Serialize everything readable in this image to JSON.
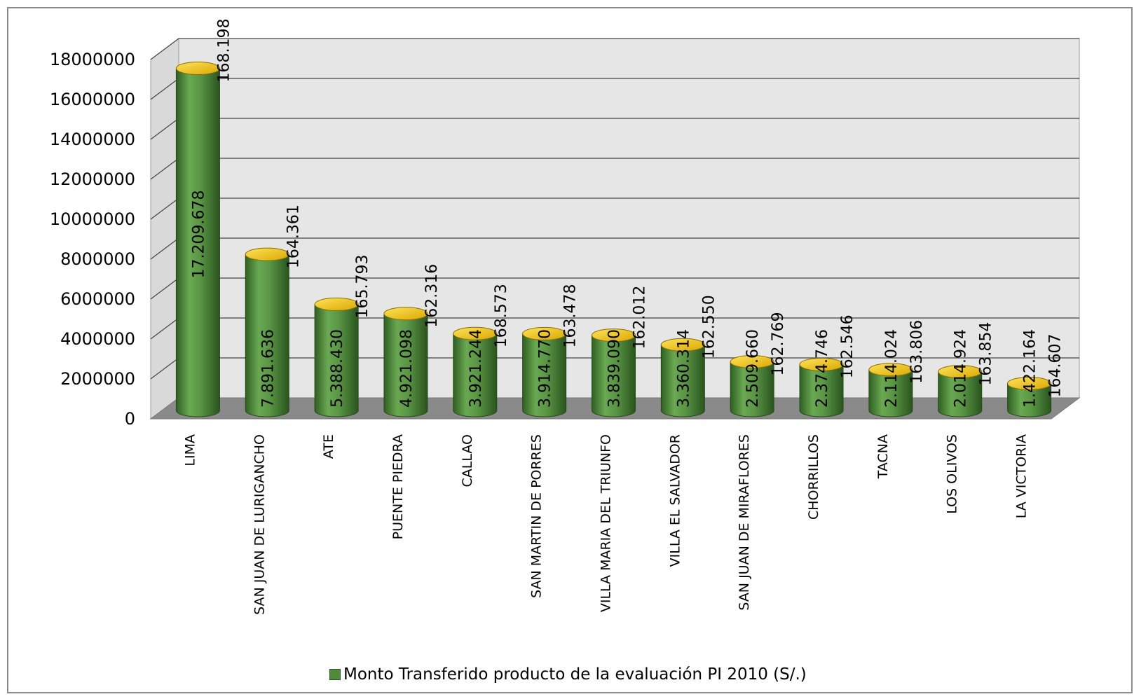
{
  "chart_data": {
    "type": "bar",
    "style": "3d-cylinder",
    "categories": [
      "LIMA",
      "SAN JUAN DE LURIGANCHO",
      "ATE",
      "PUENTE PIEDRA",
      "CALLAO",
      "SAN MARTIN DE PORRES",
      "VILLA MARIA DEL TRIUNFO",
      "VILLA EL SALVADOR",
      "SAN JUAN DE MIRAFLORES",
      "CHORRILLOS",
      "TACNA",
      "LOS OLIVOS",
      "LA VICTORIA"
    ],
    "series": [
      {
        "name": "Monto Transferido producto de la evaluación PI 2010 (S/.)",
        "color": "#4f8a3c",
        "cap_color": "#f2c200",
        "values": [
          17209678,
          7891636,
          5388430,
          4921098,
          3921244,
          3914770,
          3839090,
          3360314,
          2509660,
          2374746,
          2114024,
          2014924,
          1422164
        ],
        "labels": [
          "17.209.678",
          "7.891.636",
          "5.388.430",
          "4.921.098",
          "3.921.244",
          "3.914.770",
          "3.839.090",
          "3.360.314",
          "2.509.660",
          "2.374.746",
          "2.114.024",
          "2.014.924",
          "1.422.164"
        ]
      }
    ],
    "secondary_labels": [
      "168.198",
      "164.361",
      "165.793",
      "162.316",
      "168.573",
      "163.478",
      "162.012",
      "162.550",
      "162.769",
      "162.546",
      "163.806",
      "163.854",
      "164.607"
    ],
    "yticks": [
      "0",
      "2000000",
      "4000000",
      "6000000",
      "8000000",
      "10000000",
      "12000000",
      "14000000",
      "16000000",
      "18000000"
    ],
    "ylim": [
      0,
      18000000
    ],
    "grid": true,
    "legend_position": "bottom",
    "wall_color": "#e6e6e6",
    "floor_color": "#8a8a8a"
  },
  "legend": {
    "label": "Monto Transferido producto de la evaluación PI 2010 (S/.)"
  }
}
